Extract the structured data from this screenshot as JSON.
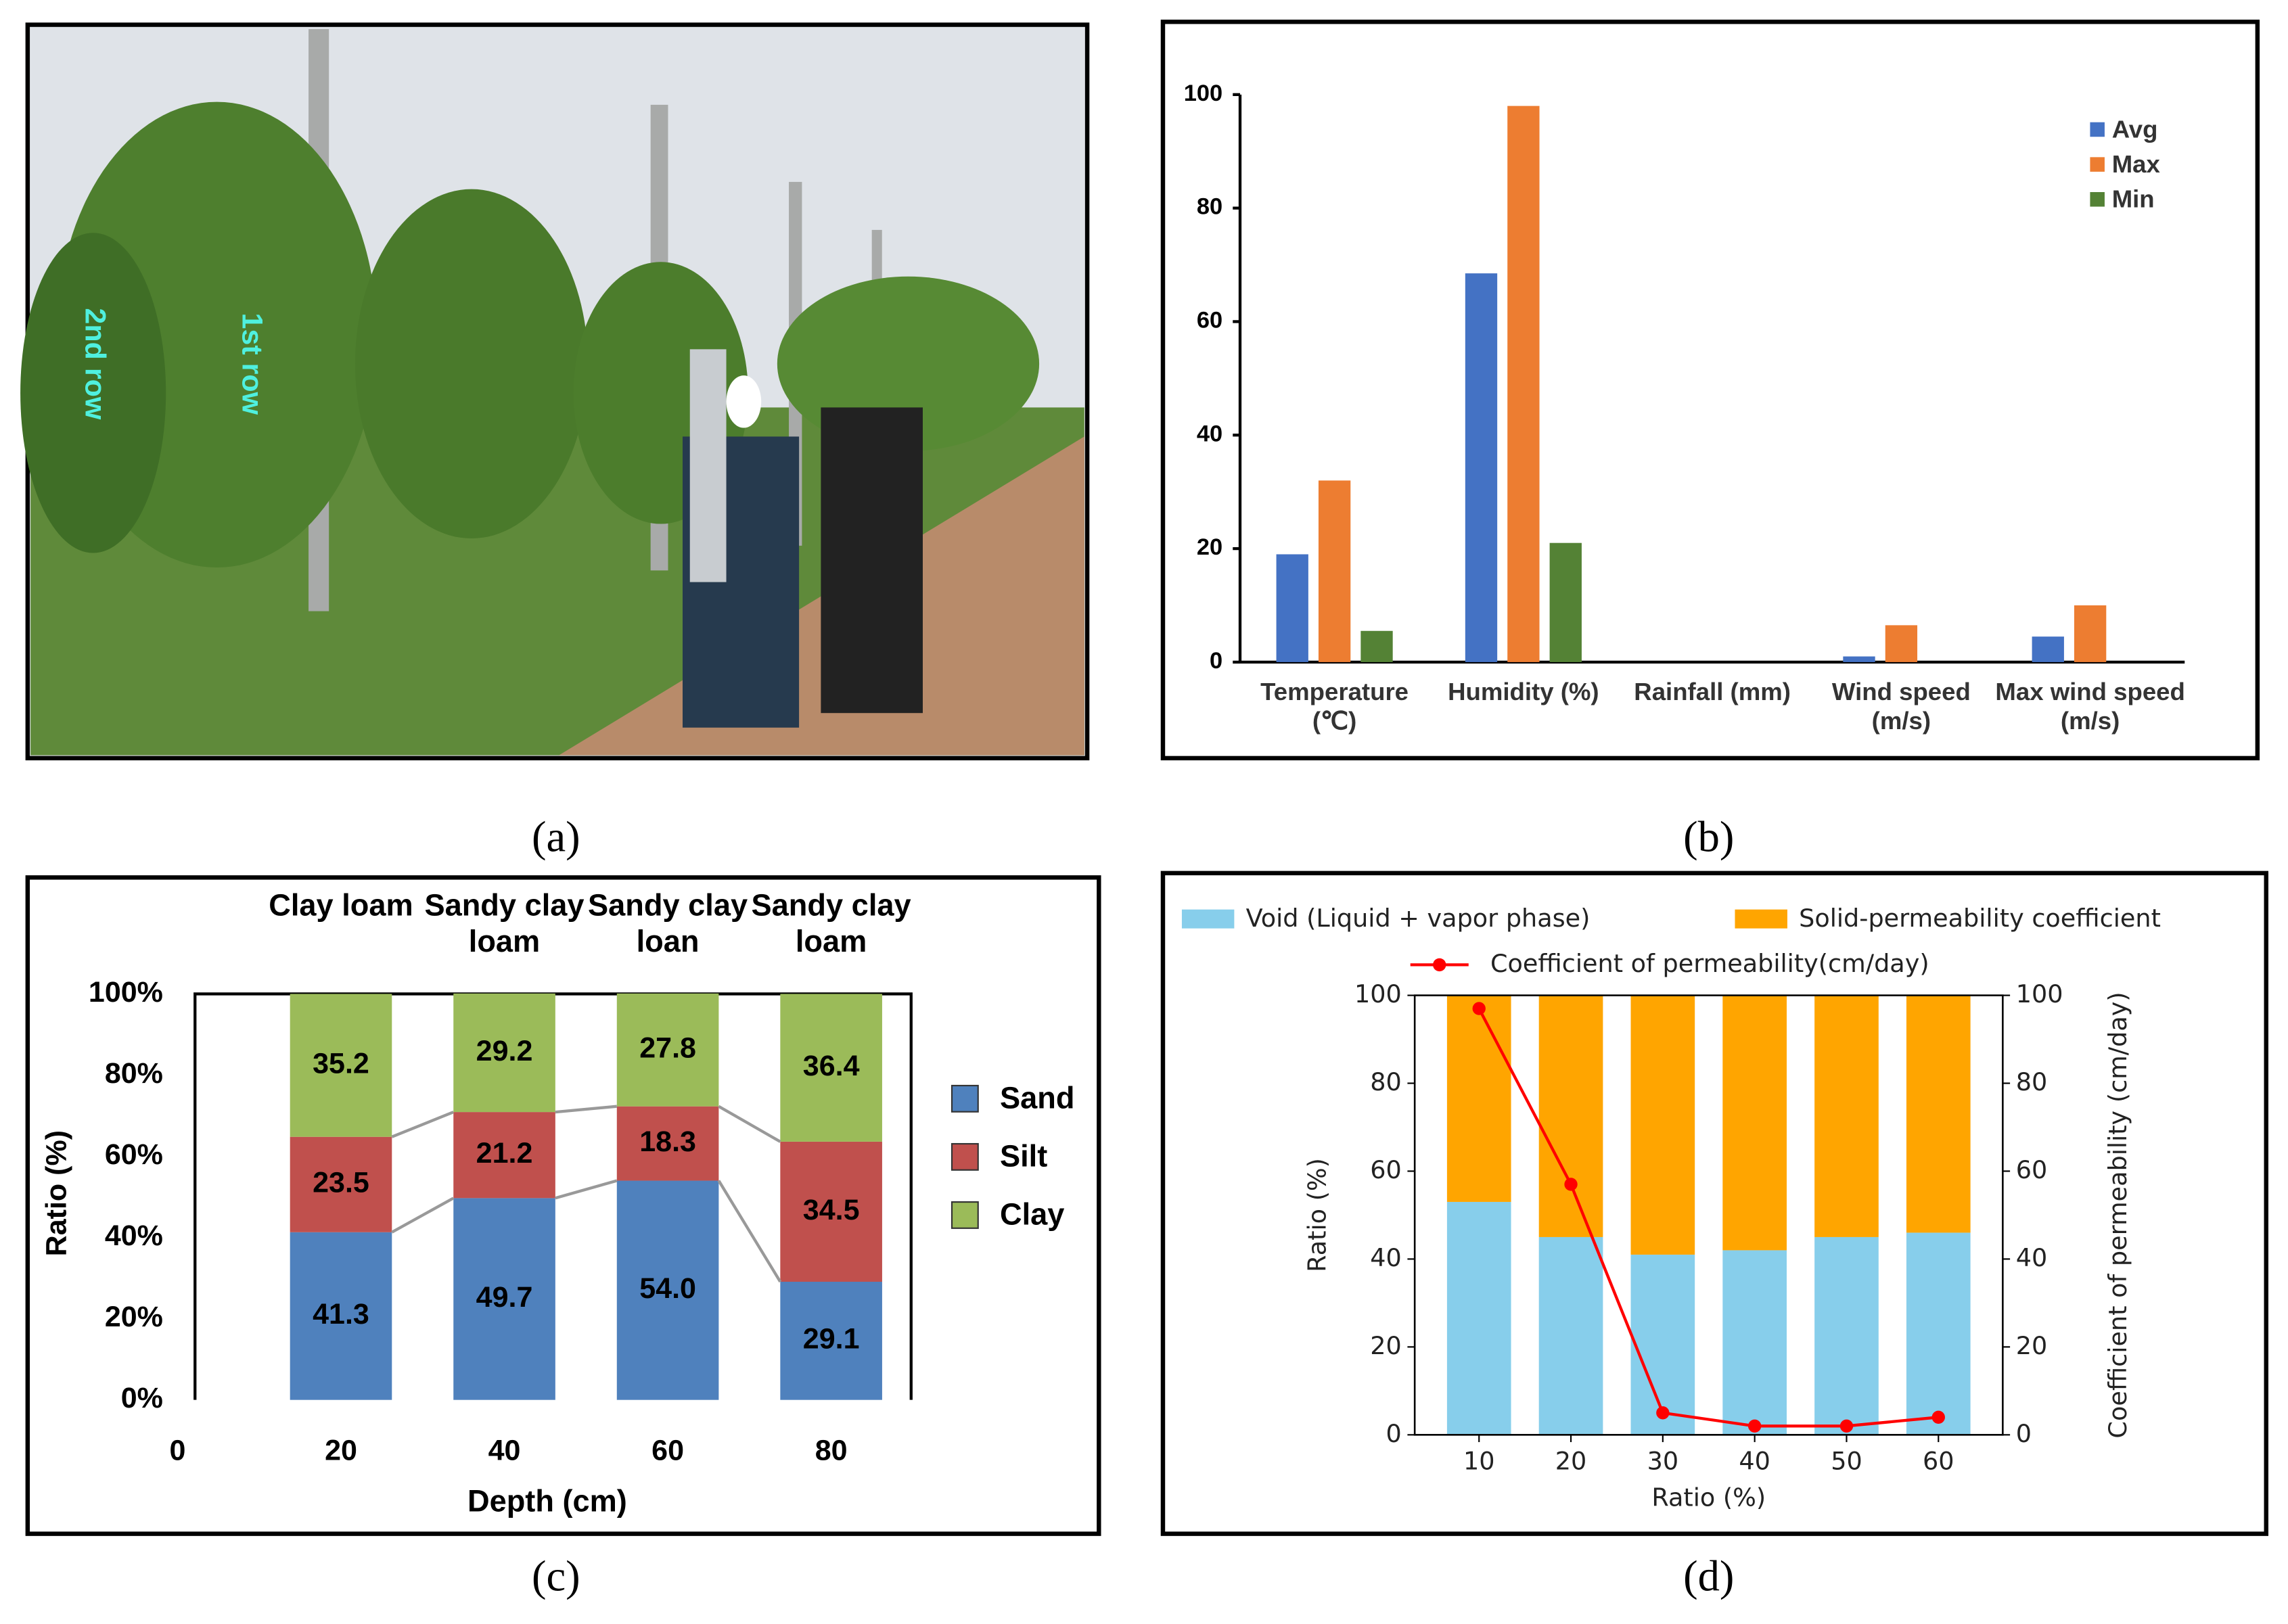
{
  "chart_data": [
    {
      "type": "photo",
      "labels": [
        "2nd row",
        "1st row"
      ],
      "caption": "(a)"
    },
    {
      "type": "bar",
      "caption": "(b)",
      "categories": [
        "Temperature (℃)",
        "Humidity (%)",
        "Rainfall (mm)",
        "Wind speed (m/s)",
        "Max wind speed (m/s)"
      ],
      "series": [
        {
          "name": "Avg",
          "color": "#4472c4",
          "values": [
            19,
            68.5,
            0,
            1,
            4.5
          ]
        },
        {
          "name": "Max",
          "color": "#ed7d31",
          "values": [
            32,
            98,
            0,
            6.5,
            10
          ]
        },
        {
          "name": "Min",
          "color": "#548235",
          "values": [
            5.5,
            21,
            0,
            0,
            0
          ]
        }
      ],
      "ylim": [
        0,
        100
      ],
      "yticks": [
        0,
        20,
        40,
        60,
        80,
        100
      ],
      "legend": "top-right"
    },
    {
      "type": "stacked_bar",
      "caption": "(c)",
      "xlabel": "Depth (cm)",
      "ylabel": "Ratio (%)",
      "x": [
        20,
        40,
        60,
        80
      ],
      "xlim": [
        0,
        88
      ],
      "xticks": [
        0,
        20,
        40,
        60,
        80
      ],
      "top_labels": [
        "Clay loam",
        "Sandy clay loam",
        "Sandy clay loan",
        "Sandy clay loam"
      ],
      "series": [
        {
          "name": "Sand",
          "color": "#4f81bd",
          "values": [
            41.3,
            49.7,
            54.0,
            29.1
          ],
          "value_labels": [
            "41.3",
            "49.7",
            "54.0",
            "29.1"
          ]
        },
        {
          "name": "Silt",
          "color": "#c0504d",
          "values": [
            23.5,
            21.2,
            18.3,
            34.5
          ]
        },
        {
          "name": "Clay",
          "color": "#9bbb59",
          "values": [
            35.2,
            29.2,
            27.8,
            36.4
          ]
        }
      ],
      "ylim": [
        0,
        100
      ],
      "yticks": [
        {
          "value": 0,
          "label": "0%"
        },
        {
          "value": 20,
          "label": "20%"
        },
        {
          "value": 40,
          "label": "40%"
        },
        {
          "value": 60,
          "label": "60%"
        },
        {
          "value": 80,
          "label": "80%"
        },
        {
          "value": 100,
          "label": "100%"
        }
      ],
      "legend": "right"
    },
    {
      "type": "combo",
      "caption": "(d)",
      "xlabel": "Ratio (%)",
      "ylabel": "Ratio (%)",
      "y2label": "Coefficient of permeability (cm/day)",
      "x": [
        10,
        20,
        30,
        40,
        50,
        60
      ],
      "xlim": [
        3,
        67
      ],
      "xticks": [
        10,
        20,
        30,
        40,
        50,
        60
      ],
      "series": [
        {
          "name": "Void (Liquid + vapor phase)",
          "color": "#87ceeb",
          "values": [
            53,
            45,
            41,
            42,
            45,
            46
          ]
        },
        {
          "name": "Solid-permeability coefficient",
          "color": "#ffa500",
          "values": [
            47,
            55,
            59,
            58,
            55,
            54
          ]
        },
        {
          "name": "Coefficient of permeability(cm/day)",
          "color": "#ff0000",
          "type": "line",
          "axis": "y2",
          "values": [
            97,
            57,
            5,
            2,
            2,
            4
          ]
        }
      ],
      "ylim": [
        0,
        100
      ],
      "yticks": [
        0,
        20,
        40,
        60,
        80,
        100
      ],
      "y2lim": [
        0,
        100
      ],
      "y2ticks": [
        0,
        20,
        40,
        60,
        80,
        100
      ],
      "legend": "top"
    }
  ]
}
